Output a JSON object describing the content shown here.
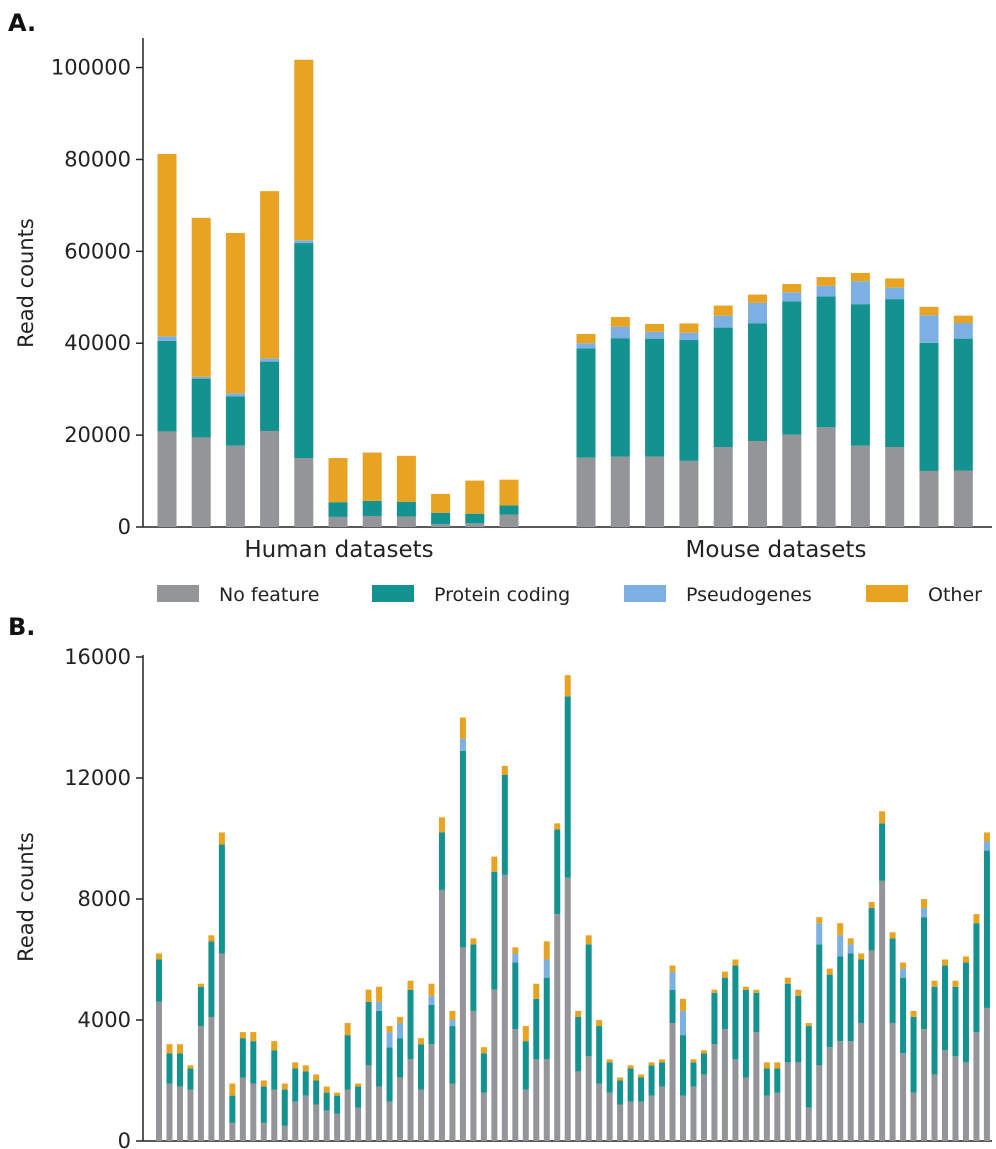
{
  "colors": {
    "No feature": "#939598",
    "Protein coding": "#13928f",
    "Pseudogenes": "#7cb0e2",
    "Other": "#e8a323"
  },
  "panel_a": {
    "label": "A."
  },
  "panel_b": {
    "label": "B."
  },
  "legend": [
    "No feature",
    "Protein coding",
    "Pseudogenes",
    "Other"
  ],
  "chart_data": [
    {
      "type": "bar",
      "stacked": true,
      "panel": "A.",
      "ylabel": "Read counts",
      "ylim": [
        0,
        106000
      ],
      "yticks": [
        0,
        20000,
        40000,
        60000,
        80000,
        100000
      ],
      "groups": [
        {
          "label": "Human datasets",
          "count": 11
        },
        {
          "label": "Mouse datasets",
          "count": 12
        }
      ],
      "series": [
        {
          "name": "No feature",
          "values": [
            20800,
            19500,
            17700,
            20900,
            15000,
            2200,
            2400,
            2300,
            600,
            800,
            2700,
            15100,
            15300,
            15300,
            14400,
            17400,
            18700,
            20100,
            21700,
            17700,
            17400,
            12200,
            12300
          ]
        },
        {
          "name": "Protein coding",
          "values": [
            19700,
            12800,
            10700,
            15100,
            46800,
            3200,
            3300,
            3200,
            2500,
            2100,
            2000,
            23800,
            25800,
            25700,
            26300,
            26000,
            25600,
            29000,
            28500,
            30800,
            32200,
            27900,
            28700
          ]
        },
        {
          "name": "Pseudogenes",
          "values": [
            1000,
            400,
            700,
            700,
            600,
            0,
            0,
            0,
            0,
            0,
            0,
            1100,
            2500,
            1500,
            1600,
            2600,
            4500,
            2000,
            2300,
            5000,
            2500,
            6000,
            3400
          ]
        },
        {
          "name": "Other",
          "values": [
            39700,
            34600,
            34900,
            36400,
            39300,
            9600,
            10500,
            10000,
            4100,
            7200,
            5600,
            2000,
            2100,
            1700,
            2000,
            2200,
            1800,
            1800,
            1900,
            1800,
            2000,
            1800,
            1600
          ]
        }
      ]
    },
    {
      "type": "bar",
      "stacked": true,
      "panel": "B.",
      "ylabel": "Read counts",
      "ylim": [
        0,
        16000
      ],
      "yticks": [
        0,
        4000,
        8000,
        12000,
        16000
      ],
      "series": [
        {
          "name": "No feature",
          "values": [
            4600,
            1900,
            1800,
            1700,
            3800,
            4100,
            6200,
            600,
            2100,
            1900,
            600,
            1700,
            500,
            1300,
            1500,
            1200,
            1000,
            900,
            1700,
            1100,
            2500,
            1800,
            1300,
            2100,
            2700,
            1700,
            3200,
            8300,
            1900,
            6400,
            4300,
            1600,
            5000,
            8800,
            3700,
            1700,
            2700,
            2700,
            7500,
            8700,
            2300,
            2800,
            1900,
            1600,
            1200,
            1300,
            1300,
            1500,
            1800,
            3900,
            1500,
            1800,
            2200,
            3200,
            3700,
            2700,
            2100,
            3600,
            1500,
            1600,
            2600,
            2600,
            1100,
            2500,
            3100,
            3300,
            3300,
            3900,
            6300,
            8600,
            3900,
            2900,
            1600,
            3700,
            2200,
            3000,
            2800,
            2600,
            3600,
            4400
          ]
        },
        {
          "name": "Protein coding",
          "values": [
            1400,
            1000,
            1100,
            700,
            1300,
            2500,
            3600,
            900,
            1300,
            1400,
            1200,
            1300,
            1200,
            1100,
            800,
            800,
            600,
            600,
            1800,
            700,
            2100,
            2500,
            1800,
            1300,
            2300,
            1500,
            1300,
            1900,
            1900,
            6500,
            2200,
            1300,
            3900,
            3300,
            2200,
            1600,
            2000,
            2700,
            2800,
            6000,
            1800,
            3700,
            1900,
            1000,
            800,
            1100,
            800,
            1000,
            800,
            1100,
            2000,
            800,
            700,
            1700,
            1700,
            3100,
            2900,
            1300,
            900,
            800,
            2600,
            2200,
            2700,
            4000,
            2400,
            2800,
            2900,
            2100,
            1400,
            1900,
            2800,
            2500,
            2500,
            3700,
            2900,
            2800,
            2300,
            3300,
            3600,
            5200
          ]
        },
        {
          "name": "Pseudogenes",
          "values": [
            0,
            0,
            0,
            0,
            0,
            0,
            0,
            0,
            0,
            0,
            0,
            0,
            0,
            0,
            0,
            0,
            0,
            0,
            0,
            0,
            0,
            300,
            500,
            500,
            0,
            0,
            300,
            0,
            200,
            400,
            0,
            0,
            0,
            0,
            300,
            0,
            0,
            600,
            0,
            0,
            0,
            0,
            0,
            0,
            0,
            0,
            0,
            0,
            0,
            600,
            800,
            0,
            0,
            0,
            0,
            0,
            0,
            0,
            0,
            0,
            0,
            0,
            0,
            700,
            0,
            700,
            300,
            0,
            0,
            0,
            0,
            300,
            0,
            300,
            0,
            0,
            0,
            0,
            0,
            300
          ]
        },
        {
          "name": "Other",
          "values": [
            200,
            300,
            300,
            100,
            100,
            200,
            400,
            400,
            200,
            300,
            200,
            300,
            200,
            200,
            200,
            200,
            200,
            100,
            400,
            100,
            400,
            500,
            200,
            200,
            300,
            200,
            400,
            500,
            300,
            700,
            200,
            200,
            500,
            300,
            200,
            500,
            500,
            600,
            200,
            700,
            200,
            300,
            200,
            100,
            100,
            100,
            100,
            100,
            100,
            200,
            400,
            100,
            100,
            100,
            200,
            200,
            100,
            100,
            200,
            200,
            200,
            200,
            100,
            200,
            200,
            400,
            200,
            200,
            200,
            400,
            200,
            200,
            200,
            300,
            200,
            200,
            200,
            200,
            300,
            300
          ]
        }
      ]
    }
  ]
}
